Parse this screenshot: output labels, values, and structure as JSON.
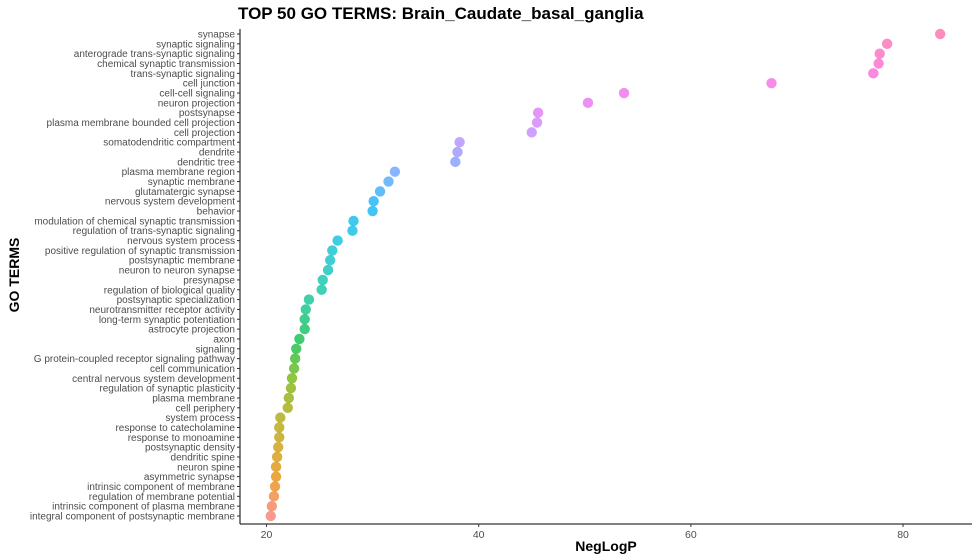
{
  "chart_data": {
    "type": "scatter",
    "title": "TOP 50 GO TERMS: Brain_Caudate_basal_ganglia",
    "xlabel": "NegLogP",
    "ylabel": "GO TERMS",
    "xlim": [
      17.5,
      86.5
    ],
    "xticks": [
      "20",
      "40",
      "60",
      "80"
    ],
    "xtick_values": [
      20,
      40,
      60,
      80
    ],
    "grid": false,
    "legend": "none",
    "point_colors": [
      "#F8766D",
      "#E58700",
      "#C99800",
      "#A3A500",
      "#6BB100",
      "#00BA38",
      "#00BF7D",
      "#00C0AF",
      "#00BCD8",
      "#00B0F6",
      "#619CFF",
      "#B983FF",
      "#E76BF3",
      "#FD61D1",
      "#FF67A4"
    ],
    "categories": [
      "synapse",
      "synaptic signaling",
      "anterograde trans-synaptic signaling",
      "chemical synaptic transmission",
      "trans-synaptic signaling",
      "cell junction",
      "cell-cell signaling",
      "neuron projection",
      "postsynapse",
      "plasma membrane bounded cell projection",
      "cell projection",
      "somatodendritic compartment",
      "dendrite",
      "dendritic tree",
      "plasma membrane region",
      "synaptic membrane",
      "glutamatergic synapse",
      "nervous system development",
      "behavior",
      "modulation of chemical synaptic transmission",
      "regulation of trans-synaptic signaling",
      "nervous system process",
      "positive regulation of synaptic transmission",
      "postsynaptic membrane",
      "neuron to neuron synapse",
      "presynapse",
      "regulation of biological quality",
      "postsynaptic specialization",
      "neurotransmitter receptor activity",
      "long-term synaptic potentiation",
      "astrocyte projection",
      "axon",
      "signaling",
      "G protein-coupled receptor signaling pathway",
      "cell communication",
      "central nervous system development",
      "regulation of synaptic plasticity",
      "plasma membrane",
      "cell periphery",
      "system process",
      "response to catecholamine",
      "response to monoamine",
      "postsynaptic density",
      "dendritic spine",
      "neuron spine",
      "asymmetric synapse",
      "intrinsic component of membrane",
      "regulation of membrane potential",
      "intrinsic component of plasma membrane",
      "integral component of postsynaptic membrane"
    ],
    "values": [
      83.5,
      78.5,
      77.8,
      77.7,
      77.2,
      67.6,
      53.7,
      50.3,
      45.6,
      45.5,
      45.0,
      38.2,
      38.0,
      37.8,
      32.1,
      31.5,
      30.7,
      30.1,
      30.0,
      28.2,
      28.1,
      26.7,
      26.2,
      26.0,
      25.8,
      25.3,
      25.2,
      24.0,
      23.7,
      23.6,
      23.6,
      23.1,
      22.8,
      22.7,
      22.6,
      22.4,
      22.3,
      22.1,
      22.0,
      21.3,
      21.2,
      21.2,
      21.1,
      21.0,
      20.9,
      20.9,
      20.8,
      20.7,
      20.5,
      20.4
    ]
  }
}
